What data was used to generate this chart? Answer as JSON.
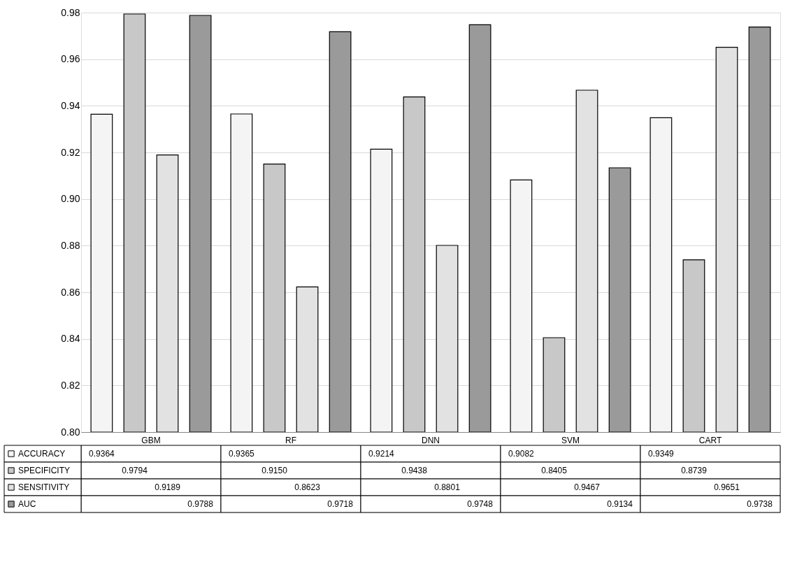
{
  "chart_data": {
    "type": "bar",
    "categories": [
      "GBM",
      "RF",
      "DNN",
      "SVM",
      "CART"
    ],
    "series": [
      {
        "name": "ACCURACY",
        "color": "#f4f4f4",
        "values": [
          0.9364,
          0.9365,
          0.9214,
          0.9082,
          0.9349
        ],
        "value_labels": [
          "0.9364",
          "0.9365",
          "0.9214",
          "0.9082",
          "0.9349"
        ]
      },
      {
        "name": "SPECIFICITY",
        "color": "#c8c8c8",
        "values": [
          0.9794,
          0.915,
          0.9438,
          0.8405,
          0.8739
        ],
        "value_labels": [
          "0.9794",
          "0.9150",
          "0.9438",
          "0.8405",
          "0.8739"
        ]
      },
      {
        "name": "SENSITIVITY",
        "color": "#e2e2e2",
        "values": [
          0.9189,
          0.8623,
          0.8801,
          0.9467,
          0.9651
        ],
        "value_labels": [
          "0.9189",
          "0.8623",
          "0.8801",
          "0.9467",
          "0.9651"
        ]
      },
      {
        "name": "AUC",
        "color": "#9a9a9a",
        "values": [
          0.9788,
          0.9718,
          0.9748,
          0.9134,
          0.9738
        ],
        "value_labels": [
          "0.9788",
          "0.9718",
          "0.9748",
          "0.9134",
          "0.9738"
        ]
      }
    ],
    "ylim": [
      0.8,
      0.98
    ],
    "yticks": [
      {
        "value": 0.8,
        "label": "0.80"
      },
      {
        "value": 0.82,
        "label": "0.82"
      },
      {
        "value": 0.84,
        "label": "0.84"
      },
      {
        "value": 0.86,
        "label": "0.86"
      },
      {
        "value": 0.88,
        "label": "0.88"
      },
      {
        "value": 0.9,
        "label": "0.90"
      },
      {
        "value": 0.92,
        "label": "0.92"
      },
      {
        "value": 0.94,
        "label": "0.94"
      },
      {
        "value": 0.96,
        "label": "0.96"
      },
      {
        "value": 0.98,
        "label": "0.98"
      }
    ],
    "grid": "y",
    "legend": "bottom"
  }
}
